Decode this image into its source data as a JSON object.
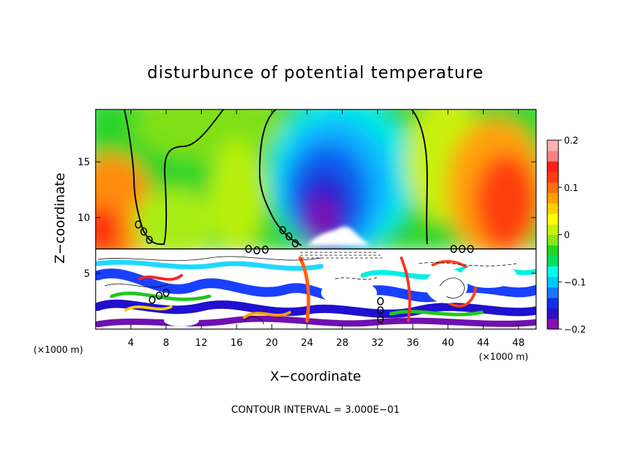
{
  "chart_data": {
    "type": "heatmap",
    "title": "disturbunce of potential temperature",
    "xlabel": "X−coordinate",
    "ylabel": "Z−coordinate",
    "x_unit": "(×1000 m)",
    "y_unit": "(×1000 m)",
    "x_ticks": [
      4,
      8,
      12,
      16,
      20,
      24,
      28,
      32,
      36,
      40,
      44,
      48
    ],
    "y_ticks": [
      5,
      10,
      15
    ],
    "xlim": [
      0,
      50
    ],
    "ylim": [
      0,
      19.7
    ],
    "colorbar": {
      "ticks": [
        "0.2",
        "0.1",
        "0",
        "−0.1",
        "−0.2"
      ],
      "range": [
        -0.2,
        0.2
      ],
      "colors": [
        "#8a0fb0",
        "#2b10c8",
        "#1030e8",
        "#1878ff",
        "#00c8ff",
        "#00ffee",
        "#00e060",
        "#20d820",
        "#86e818",
        "#c8f010",
        "#ffff00",
        "#ffd000",
        "#ffa000",
        "#ff7010",
        "#ff3c10",
        "#ff2020",
        "#ff8080",
        "#ffb0b0"
      ]
    },
    "contour_interval_text": "CONTOUR INTERVAL = 3.000E−01"
  }
}
